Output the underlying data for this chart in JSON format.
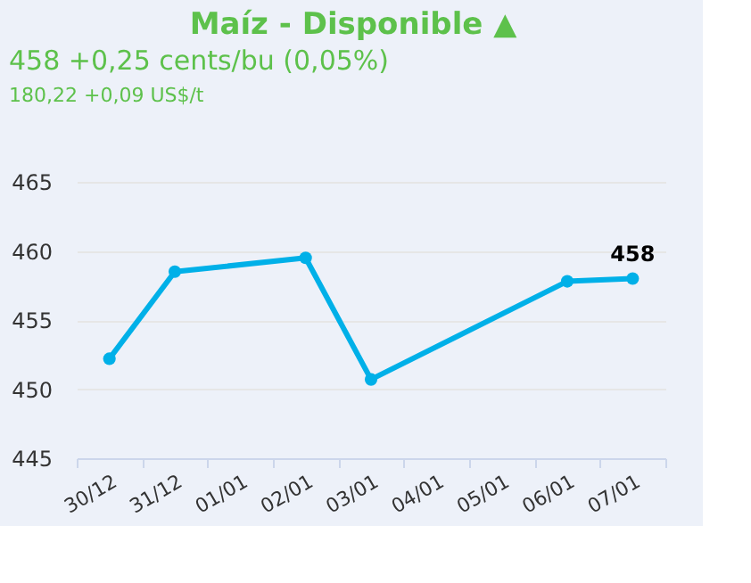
{
  "chart_data": {
    "type": "line",
    "title": "Maíz - Disponible ▲",
    "subtitle": "458 +0,25 cents/bu (0,05%)",
    "annotations": [
      "180,22 +0,09 US$/t"
    ],
    "categories": [
      "30/12",
      "31/12",
      "01/01",
      "02/01",
      "03/01",
      "04/01",
      "05/01",
      "06/01",
      "07/01"
    ],
    "series": [
      {
        "color": "#00b0e8",
        "values": [
          452.2,
          458.5,
          null,
          459.5,
          450.7,
          null,
          null,
          457.8,
          458
        ],
        "value_labels": [
          null,
          null,
          null,
          null,
          null,
          null,
          null,
          null,
          "458"
        ]
      }
    ],
    "ylim": [
      445,
      465
    ],
    "yticks": [
      445,
      450,
      455,
      460,
      465
    ],
    "grid": "y",
    "marker": "circle"
  }
}
